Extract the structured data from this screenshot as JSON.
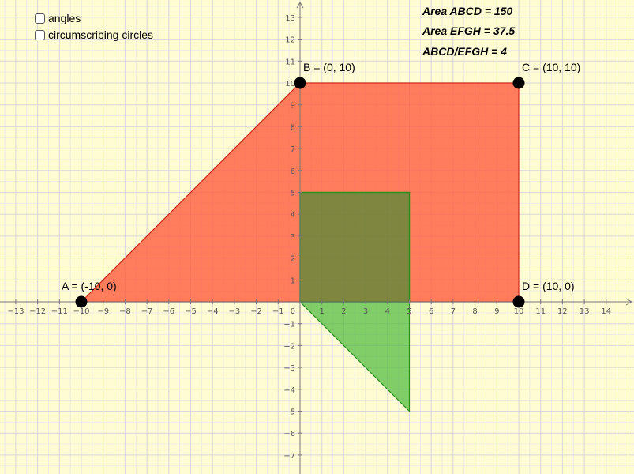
{
  "controls": {
    "angles_label": "angles",
    "angles_checked": false,
    "circles_label": "circumscribing circles",
    "circles_checked": false
  },
  "readouts": {
    "area_abcd": "Area ABCD = 150",
    "area_efgh": "Area EFGH = 37.5",
    "ratio": "ABCD/EFGH = 4"
  },
  "axes": {
    "x_range": [
      -13,
      14
    ],
    "y_range": [
      -7,
      13
    ],
    "grid": true,
    "minor_grid": true
  },
  "colors": {
    "background": "#fffbd2",
    "quad_fill": "#ff5a3c",
    "quad_edge": "#cc2a1a",
    "square_fill": "#2f8c2f",
    "triangle_fill": "#4cbb3a",
    "green_edge": "#2c8f1f",
    "point": "#000000"
  },
  "points": [
    {
      "name": "A",
      "x": -10,
      "y": 0,
      "label": "A = (-10, 0)",
      "anchor": "above-left"
    },
    {
      "name": "B",
      "x": 0,
      "y": 10,
      "label": "B = (0, 10)",
      "anchor": "above-right"
    },
    {
      "name": "C",
      "x": 10,
      "y": 10,
      "label": "C = (10, 10)",
      "anchor": "above-right"
    },
    {
      "name": "D",
      "x": 10,
      "y": 0,
      "label": "D = (10, 0)",
      "anchor": "above-right"
    }
  ],
  "polygons": {
    "abcd": [
      [
        -10,
        0
      ],
      [
        0,
        10
      ],
      [
        10,
        10
      ],
      [
        10,
        0
      ]
    ],
    "square": [
      [
        0,
        0
      ],
      [
        0,
        5
      ],
      [
        5,
        5
      ],
      [
        5,
        0
      ]
    ],
    "triangle": [
      [
        0,
        0
      ],
      [
        5,
        0
      ],
      [
        5,
        -5
      ]
    ]
  }
}
